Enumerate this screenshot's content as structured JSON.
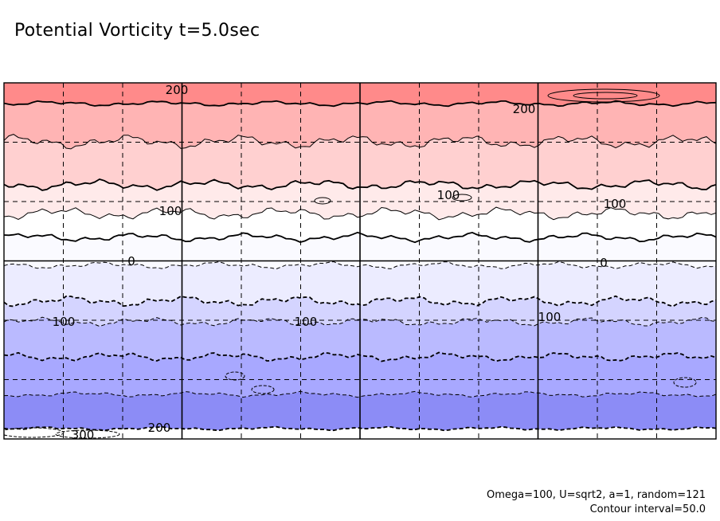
{
  "chart_data": {
    "type": "contour",
    "title": "Potential Vorticity t=5.0sec",
    "field": "potential vorticity",
    "time_label": "t=5.0sec",
    "params": "Omega=100, U=sqrt2, a=1, random=121",
    "contour_interval_label": "Contour interval=50.0",
    "contour_interval": 50.0,
    "value_range": [
      -300,
      250
    ],
    "bands": [
      {
        "min": 200,
        "max": 250,
        "color": "#ff8a8a"
      },
      {
        "min": 150,
        "max": 200,
        "color": "#ffb4b4"
      },
      {
        "min": 100,
        "max": 150,
        "color": "#ffd0d0"
      },
      {
        "min": 50,
        "max": 100,
        "color": "#ffeaea"
      },
      {
        "min": 0,
        "max": 50,
        "color": "#ffffff"
      },
      {
        "min": -50,
        "max": 0,
        "color": "#fafaff"
      },
      {
        "min": -100,
        "max": -50,
        "color": "#ececff"
      },
      {
        "min": -150,
        "max": -100,
        "color": "#d4d4ff"
      },
      {
        "min": -200,
        "max": -150,
        "color": "#babaff"
      },
      {
        "min": -250,
        "max": -200,
        "color": "#a8a8ff"
      },
      {
        "min": -300,
        "max": -250,
        "color": "#8c8cf6"
      }
    ],
    "contour_labels": [
      "200",
      "200",
      "100",
      "100",
      "100",
      "0",
      "0",
      "100",
      "100",
      "100",
      "200",
      "300"
    ],
    "grid": {
      "major_cols": 4,
      "minor_cols": 12,
      "rows": 6,
      "dashed": true
    }
  }
}
